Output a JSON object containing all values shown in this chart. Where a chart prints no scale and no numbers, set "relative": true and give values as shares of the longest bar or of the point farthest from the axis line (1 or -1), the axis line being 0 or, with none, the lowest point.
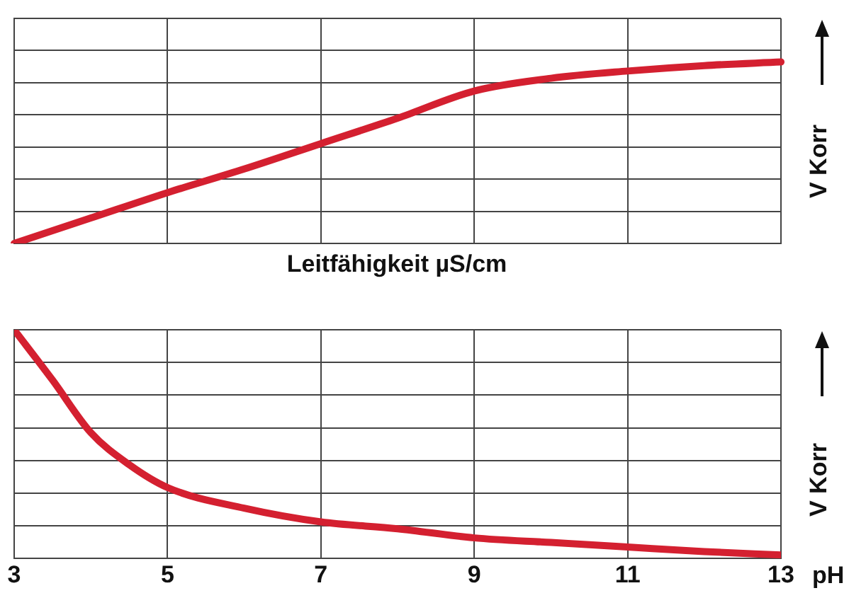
{
  "chart_data": [
    {
      "type": "line",
      "xlabel": "Leitfähigkeit µS/cm",
      "ylabel": "V Korr",
      "relative": true,
      "grid": true,
      "legend": false,
      "tick_labels": false,
      "marker": "none",
      "categories": [
        null,
        null,
        null,
        null,
        null,
        null,
        null,
        null,
        null,
        null,
        null
      ],
      "series": [
        {
          "color": "#d42030",
          "values": [
            0,
            0.14,
            0.28,
            0.41,
            0.55,
            0.69,
            0.84,
            0.91,
            0.95,
            0.98,
            1
          ]
        }
      ]
    },
    {
      "type": "line",
      "xlabel": "pH",
      "ylabel": "V Korr",
      "relative": true,
      "grid": true,
      "legend": false,
      "tick_labels": "x",
      "marker": "none",
      "xlim": [
        3,
        13
      ],
      "xticks": [
        3,
        5,
        7,
        9,
        11,
        13
      ],
      "series": [
        {
          "color": "#d42030",
          "x": [
            3,
            3.5,
            4,
            4.5,
            5,
            6,
            7,
            8,
            9,
            10,
            11,
            12,
            13
          ],
          "values": [
            1,
            0.78,
            0.55,
            0.41,
            0.31,
            0.22,
            0.16,
            0.13,
            0.09,
            0.07,
            0.05,
            0.03,
            0.015
          ]
        }
      ]
    }
  ]
}
